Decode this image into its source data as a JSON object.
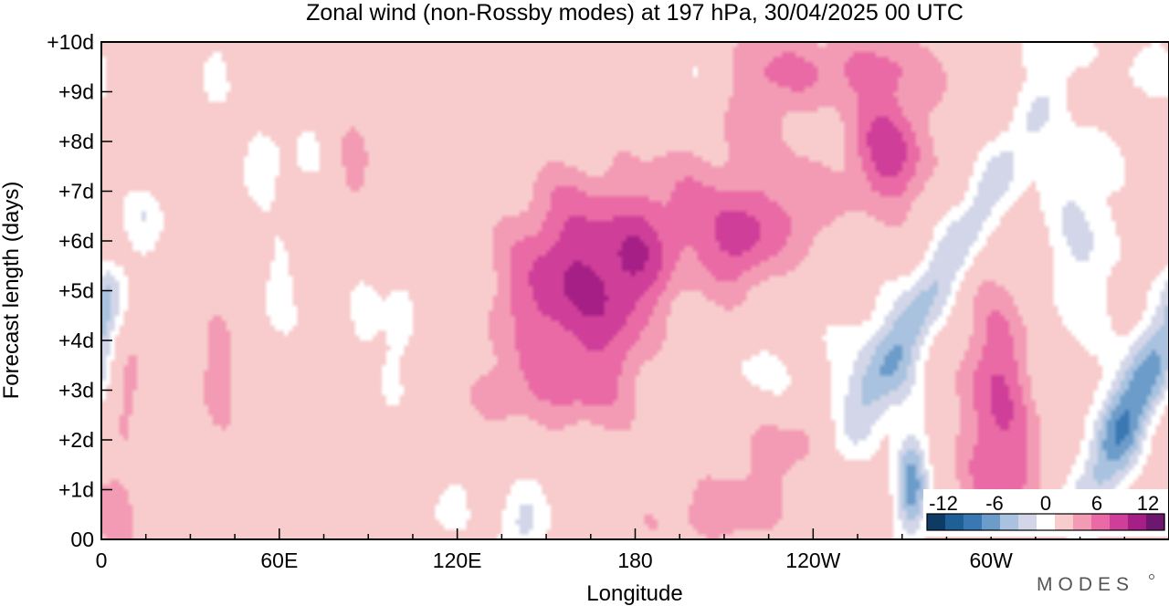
{
  "chart_data": {
    "type": "heatmap",
    "title": "Zonal wind (non-Rossby modes) at 197 hPa,  30/04/2025  00 UTC",
    "xlabel": "Longitude",
    "ylabel": "Forecast length (days)",
    "x_axis": {
      "range_deg_east": [
        0,
        360
      ],
      "tick_labels": [
        "0",
        "60E",
        "120E",
        "180",
        "120W",
        "60W"
      ],
      "tick_values_deg_east": [
        0,
        60,
        120,
        180,
        240,
        300
      ],
      "minor_step_deg": 15
    },
    "y_axis": {
      "range_days": [
        0,
        10
      ],
      "tick_labels": [
        "00",
        "+1d",
        "+2d",
        "+3d",
        "+4d",
        "+5d",
        "+6d",
        "+7d",
        "+8d",
        "+9d",
        "+10d"
      ],
      "tick_values_days": [
        0,
        1,
        2,
        3,
        4,
        5,
        6,
        7,
        8,
        9,
        10
      ]
    },
    "colorbar": {
      "labels": [
        "-12",
        "-6",
        "0",
        "6",
        "12"
      ],
      "label_values": [
        -12,
        -6,
        0,
        6,
        12
      ],
      "levels": [
        -15,
        -12,
        -10,
        -8,
        -6,
        -4,
        -2,
        2,
        4,
        6,
        8,
        10,
        12,
        15
      ],
      "colors": [
        "#0e3a66",
        "#1e5f96",
        "#3978b3",
        "#6c9cc9",
        "#a8c2df",
        "#d2d6e8",
        "#ffffff",
        "#f8cccc",
        "#f39bb4",
        "#ea6aa5",
        "#cf3f99",
        "#a51f86",
        "#6e1770"
      ]
    },
    "features": [
      {
        "lon": 55,
        "day": 7.5,
        "value": -3,
        "sig": [
          8,
          0.6
        ]
      },
      {
        "lon": 38,
        "day": 9.3,
        "value": -3,
        "sig": [
          4,
          0.6
        ]
      },
      {
        "lon": 60,
        "day": 5.0,
        "value": -3,
        "sig": [
          5,
          0.8
        ]
      },
      {
        "lon": 15,
        "day": 6.6,
        "value": -3,
        "sig": [
          6,
          0.5
        ]
      },
      {
        "lon": 100,
        "day": 4.0,
        "value": -3,
        "sig": [
          5,
          1.2
        ]
      },
      {
        "lon": 118,
        "day": 0.7,
        "value": -3,
        "sig": [
          6,
          0.6
        ]
      },
      {
        "lon": 142,
        "day": 0.3,
        "value": -5,
        "sig": [
          6,
          0.6
        ]
      },
      {
        "lon": 2,
        "day": 5.0,
        "value": -3,
        "sig": [
          3,
          0.5
        ]
      },
      {
        "lon": 70,
        "day": 7.8,
        "value": -2.5,
        "sig": [
          3,
          0.4
        ]
      },
      {
        "lon": 88,
        "day": 4.5,
        "value": -3,
        "sig": [
          4,
          0.5
        ]
      },
      {
        "lon": 150,
        "day": 4.8,
        "value": 5,
        "sig": [
          14,
          1.0
        ]
      },
      {
        "lon": 160,
        "day": 6.3,
        "value": 4,
        "sig": [
          14,
          1.0
        ]
      },
      {
        "lon": 170,
        "day": 4.2,
        "value": 4,
        "sig": [
          12,
          1.3
        ]
      },
      {
        "lon": 148,
        "day": 3.0,
        "value": 3,
        "sig": [
          18,
          0.6
        ]
      },
      {
        "lon": 180,
        "day": 5.5,
        "value": 4,
        "sig": [
          8,
          0.8
        ]
      },
      {
        "lon": 195,
        "day": 6.5,
        "value": 4,
        "sig": [
          12,
          1.0
        ]
      },
      {
        "lon": 215,
        "day": 6.0,
        "value": 6,
        "sig": [
          8,
          0.8
        ]
      },
      {
        "lon": 235,
        "day": 6.5,
        "value": 4,
        "sig": [
          8,
          0.7
        ]
      },
      {
        "lon": 222,
        "day": 8.5,
        "value": 3,
        "sig": [
          10,
          1.0
        ]
      },
      {
        "lon": 265,
        "day": 7.8,
        "value": 7,
        "sig": [
          10,
          0.9
        ]
      },
      {
        "lon": 250,
        "day": 9.5,
        "value": 4,
        "sig": [
          25,
          0.5
        ]
      },
      {
        "lon": 85,
        "day": 7.5,
        "value": 3,
        "sig": [
          4,
          0.6
        ]
      },
      {
        "lon": 40,
        "day": 3.5,
        "value": 3,
        "sig": [
          5,
          1.0
        ]
      },
      {
        "lon": 8,
        "day": 3.0,
        "value": 3,
        "sig": [
          4,
          1.0
        ]
      },
      {
        "lon": 5,
        "day": 0.6,
        "value": 3,
        "sig": [
          6,
          0.6
        ]
      },
      {
        "lon": 230,
        "day": 2.0,
        "value": 4,
        "sig": [
          15,
          0.7
        ]
      },
      {
        "lon": 210,
        "day": 0.5,
        "value": 3,
        "sig": [
          20,
          0.5
        ]
      },
      {
        "lon": 302,
        "day": 3.0,
        "value": 6,
        "sig": [
          9,
          1.5
        ]
      },
      {
        "lon": 305,
        "day": 1.2,
        "value": 3,
        "sig": [
          9,
          0.7
        ]
      },
      {
        "lon": 262,
        "day": 3.5,
        "value": -3,
        "sig": [
          12,
          1.2
        ]
      },
      {
        "lon": 222,
        "day": 3.0,
        "value": -3,
        "sig": [
          18,
          0.8
        ]
      },
      {
        "lon": 330,
        "day": 7.0,
        "value": -2.5,
        "sig": [
          12,
          1.5
        ]
      },
      {
        "lon": 330,
        "day": 5.0,
        "value": -2.5,
        "sig": [
          10,
          1.5
        ]
      },
      {
        "lon": 200,
        "day": 9.2,
        "value": -2.5,
        "sig": [
          8,
          0.5
        ]
      },
      {
        "lon": 355,
        "day": 9.5,
        "value": -3,
        "sig": [
          8,
          0.5
        ]
      },
      {
        "lon": 316,
        "day": 9.8,
        "value": -3,
        "sig": [
          6,
          0.3
        ]
      },
      {
        "lon": 282,
        "day": 5.2,
        "value": -6,
        "sig": [
          7,
          3.0
        ],
        "dlon_dday": 9.5
      },
      {
        "lon": 273,
        "day": 1.0,
        "value": -9,
        "sig": [
          4,
          0.8
        ]
      },
      {
        "lon": 347,
        "day": 2.6,
        "value": -10,
        "sig": [
          7,
          1.6
        ],
        "dlon_dday": 7.0
      }
    ]
  },
  "logo": "MODES"
}
